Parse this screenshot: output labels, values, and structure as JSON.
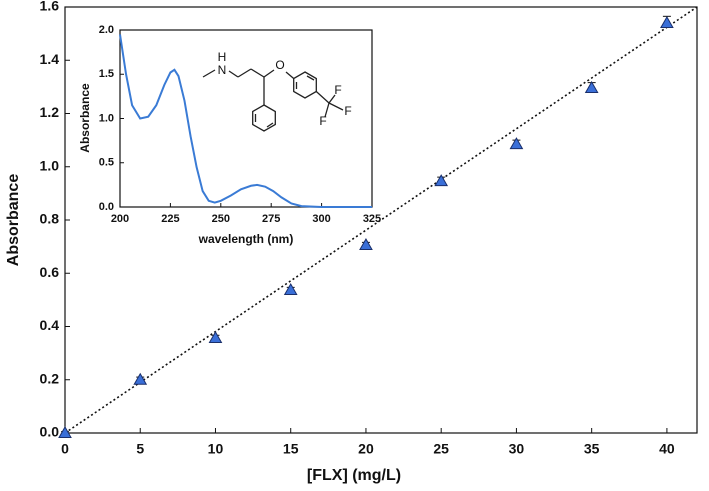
{
  "chart_data": [
    {
      "type": "scatter",
      "x_label": "[FLX] (mg/L)",
      "y_label": "Absorbance",
      "x": [
        0,
        5,
        10,
        15,
        20,
        25,
        30,
        35,
        40
      ],
      "values": [
        0,
        0.2,
        0.357,
        0.537,
        0.706,
        0.946,
        1.085,
        1.296,
        1.54
      ],
      "errors": [
        0.005,
        0.01,
        0.01,
        0.01,
        0.01,
        0.015,
        0.015,
        0.02,
        0.025
      ],
      "color": "#3a6fd8",
      "fit": {
        "x": [
          0,
          42
        ],
        "values": [
          0,
          1.6
        ],
        "color": "#111111"
      },
      "xlim": [
        0,
        42
      ],
      "ylim": [
        0,
        1.6
      ],
      "xticks": [
        0,
        5,
        10,
        15,
        20,
        25,
        30,
        35,
        40
      ],
      "yticks": [
        {
          "value": 0,
          "label": "0.0"
        },
        {
          "value": 0.2,
          "label": "0.2"
        },
        {
          "value": 0.4,
          "label": "0.4"
        },
        {
          "value": 0.6,
          "label": "0.6"
        },
        {
          "value": 0.8,
          "label": "0.8"
        },
        {
          "value": 1.0,
          "label": "1.0"
        },
        {
          "value": 1.2,
          "label": "1.2"
        },
        {
          "value": 1.4,
          "label": "1.4"
        },
        {
          "value": 1.6,
          "label": "1.6"
        }
      ]
    },
    {
      "type": "line",
      "x_label": "wavelength (nm)",
      "y_label": "Absorbance",
      "x": [
        200,
        203,
        206,
        210,
        214,
        218,
        222,
        225,
        227,
        229,
        232,
        235,
        238,
        241,
        244,
        247,
        250,
        255,
        260,
        265,
        268,
        272,
        276,
        280,
        285,
        290,
        300,
        310,
        325
      ],
      "values": [
        1.95,
        1.5,
        1.15,
        1.0,
        1.02,
        1.15,
        1.38,
        1.52,
        1.55,
        1.48,
        1.2,
        0.8,
        0.45,
        0.18,
        0.07,
        0.05,
        0.07,
        0.13,
        0.2,
        0.24,
        0.25,
        0.23,
        0.18,
        0.11,
        0.04,
        0.01,
        0,
        0,
        0
      ],
      "color": "#3a7bd5",
      "xlim": [
        200,
        325
      ],
      "ylim": [
        0,
        2.0
      ],
      "xticks": [
        200,
        225,
        250,
        275,
        300,
        325
      ],
      "yticks": [
        {
          "value": 0,
          "label": "0.0"
        },
        {
          "value": 0.5,
          "label": "0.5"
        },
        {
          "value": 1.0,
          "label": "1.0"
        },
        {
          "value": 1.5,
          "label": "1.5"
        },
        {
          "value": 2.0,
          "label": "2.0"
        }
      ]
    }
  ],
  "inset_structure": {
    "atoms": [
      "H",
      "N",
      "O",
      "F",
      "F",
      "F"
    ]
  }
}
